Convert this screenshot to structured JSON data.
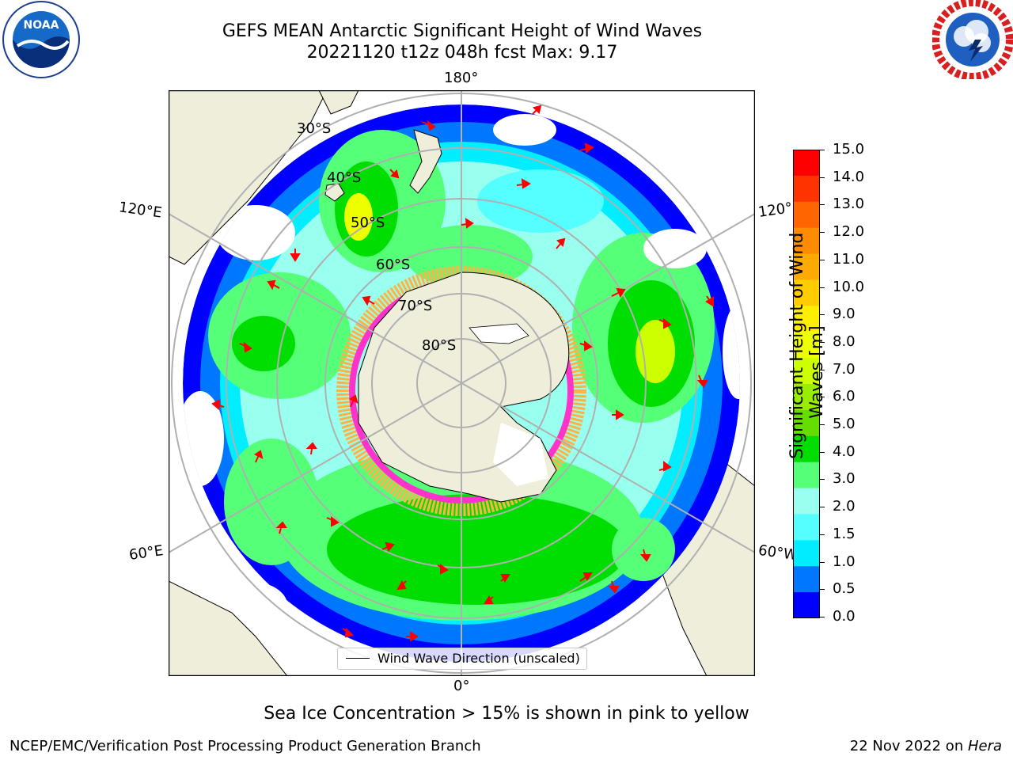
{
  "title": {
    "line1": "GEFS MEAN Antarctic Significant Height of Wind Waves",
    "line2": "20221120 t12z 048h fcst   Max: 9.17"
  },
  "logos": {
    "left": "noaa-logo",
    "right": "national-weather-service-logo",
    "left_text": "NOAA",
    "right_ring_text": "NATIONAL WEATHER SERVICE"
  },
  "map": {
    "projection": "south-polar-stereographic",
    "longitude_labels": {
      "top": "180°",
      "bottom": "0°",
      "left_upper": "120°E",
      "left_lower": "60°E",
      "right_upper": "120°",
      "right_lower": "60°W"
    },
    "latitude_labels": [
      "30°S",
      "40°S",
      "50°S",
      "60°S",
      "70°S",
      "80°S"
    ],
    "legend": {
      "label": "Wind Wave Direction (unscaled)"
    },
    "colors": {
      "land": "#efeedb",
      "ice_pink": "#ff33cc",
      "ice_yellow": "#ffb347",
      "arrow": "#ff0000",
      "grid": "#b0b0b0"
    }
  },
  "colorbar": {
    "label_line1": "Significant Height of Wind",
    "label_line2": "Waves [m]",
    "ticks": [
      "15.0",
      "14.0",
      "13.0",
      "12.0",
      "11.0",
      "10.0",
      "9.0",
      "8.0",
      "7.0",
      "6.0",
      "5.0",
      "4.0",
      "3.0",
      "2.0",
      "1.5",
      "1.0",
      "0.5",
      "0.0"
    ],
    "bin_colors_top_to_bottom": [
      "#ff0000",
      "#ff3300",
      "#ff6600",
      "#ff8c00",
      "#ffaa00",
      "#ffcc00",
      "#ffee00",
      "#eeff00",
      "#ccff00",
      "#99ee00",
      "#66dd00",
      "#00dd00",
      "#55ff77",
      "#99ffee",
      "#55ffff",
      "#00eeff",
      "#0077ff",
      "#0000ff"
    ]
  },
  "caption": "Sea Ice Concentration > 15% is shown in pink to yellow",
  "footer": {
    "left": "NCEP/EMC/Verification Post Processing Product Generation Branch",
    "right_prefix": "22 Nov 2022 on ",
    "right_italic": "Hera"
  }
}
